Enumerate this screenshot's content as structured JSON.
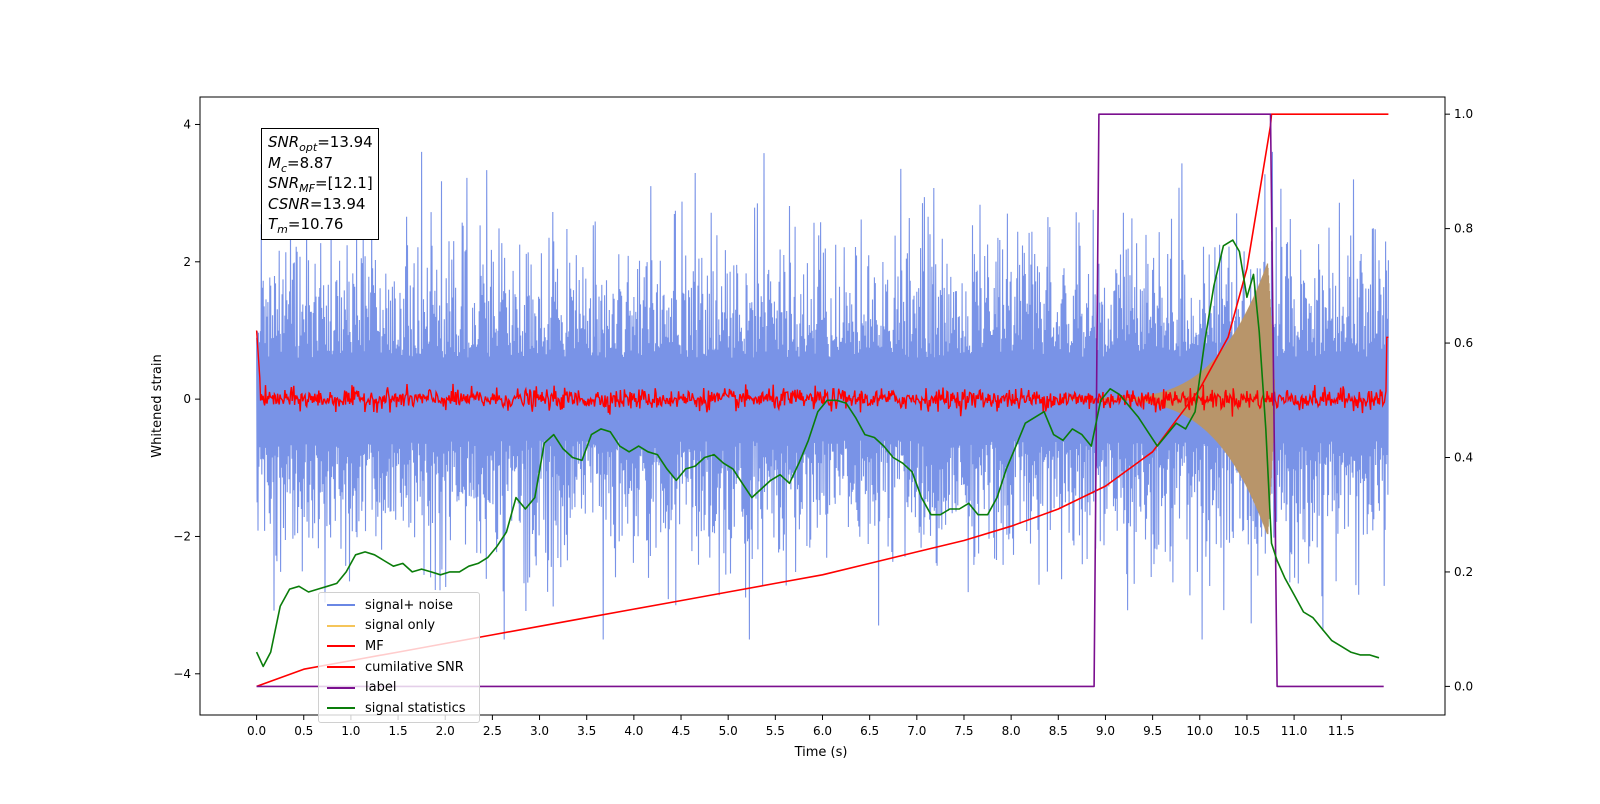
{
  "chart_data": {
    "type": "line",
    "xlabel": "Time (s)",
    "ylabel": "Whitened strain",
    "xlim": [
      -0.6,
      12.6
    ],
    "ylim": [
      -4.6,
      4.4
    ],
    "y2lim": [
      -0.05,
      1.03
    ],
    "x_ticks": [
      "0.0",
      "0.5",
      "1.0",
      "1.5",
      "2.0",
      "2.5",
      "3.0",
      "3.5",
      "4.0",
      "4.5",
      "5.0",
      "5.5",
      "6.0",
      "6.5",
      "7.0",
      "7.5",
      "8.0",
      "8.5",
      "9.0",
      "9.5",
      "10.0",
      "10.5",
      "11.0",
      "11.5"
    ],
    "y_ticks": [
      "4",
      "2",
      "0",
      "−2",
      "−4"
    ],
    "y2_ticks": [
      "1.0",
      "0.8",
      "0.6",
      "0.4",
      "0.2",
      "0.0"
    ],
    "grid": false,
    "legend_position": "lower-left",
    "series": [
      {
        "name": "signal+ noise",
        "color": "#6a87e4",
        "axis": "left",
        "kind": "noise",
        "amplitude_range": [
          -3.5,
          3.6
        ],
        "x_range": [
          0.0,
          12.0
        ]
      },
      {
        "name": "signal only",
        "color": "#f5c55a",
        "axis": "left",
        "kind": "chirp",
        "x_range": [
          8.5,
          10.8
        ],
        "peak_amplitude": 2.3
      },
      {
        "name": "MF",
        "color": "#ff0000",
        "axis": "left",
        "kind": "noise",
        "x_range": [
          0.0,
          12.0
        ],
        "amplitude": 0.15,
        "end_value": 0.9
      },
      {
        "name": "cumilative SNR",
        "color": "#ff0000",
        "axis": "right",
        "x": [
          0.0,
          0.5,
          1.0,
          1.5,
          2.0,
          2.5,
          3.0,
          3.5,
          4.0,
          4.5,
          5.0,
          5.5,
          6.0,
          6.5,
          7.0,
          7.5,
          8.0,
          8.5,
          9.0,
          9.5,
          10.0,
          10.3,
          10.5,
          10.65,
          10.75,
          10.76,
          12.0
        ],
        "y": [
          0.0,
          0.03,
          0.045,
          0.06,
          0.075,
          0.09,
          0.105,
          0.12,
          0.135,
          0.15,
          0.165,
          0.18,
          0.195,
          0.215,
          0.235,
          0.255,
          0.28,
          0.31,
          0.35,
          0.41,
          0.52,
          0.61,
          0.73,
          0.88,
          0.98,
          1.0,
          1.0
        ]
      },
      {
        "name": "label",
        "color": "#7b0f8f",
        "axis": "right",
        "x": [
          0.0,
          8.88,
          8.93,
          10.75,
          10.82,
          11.95
        ],
        "y": [
          0.0,
          0.0,
          1.0,
          1.0,
          0.0,
          0.0
        ]
      },
      {
        "name": "signal statistics",
        "color": "#0a7d0a",
        "axis": "right",
        "x": [
          0.0,
          0.07,
          0.15,
          0.25,
          0.35,
          0.45,
          0.55,
          0.65,
          0.75,
          0.85,
          0.95,
          1.05,
          1.15,
          1.25,
          1.35,
          1.45,
          1.55,
          1.65,
          1.75,
          1.85,
          1.95,
          2.05,
          2.15,
          2.25,
          2.35,
          2.45,
          2.55,
          2.65,
          2.75,
          2.85,
          2.95,
          3.05,
          3.15,
          3.25,
          3.35,
          3.45,
          3.55,
          3.65,
          3.75,
          3.85,
          3.95,
          4.05,
          4.15,
          4.25,
          4.35,
          4.45,
          4.55,
          4.65,
          4.75,
          4.85,
          4.95,
          5.05,
          5.15,
          5.25,
          5.35,
          5.45,
          5.55,
          5.65,
          5.75,
          5.85,
          5.95,
          6.05,
          6.15,
          6.25,
          6.35,
          6.45,
          6.55,
          6.65,
          6.75,
          6.85,
          6.95,
          7.05,
          7.15,
          7.25,
          7.35,
          7.45,
          7.55,
          7.65,
          7.75,
          7.85,
          7.95,
          8.05,
          8.15,
          8.25,
          8.35,
          8.45,
          8.55,
          8.65,
          8.75,
          8.85,
          8.95,
          9.05,
          9.15,
          9.25,
          9.35,
          9.45,
          9.55,
          9.65,
          9.75,
          9.85,
          9.95,
          10.05,
          10.15,
          10.25,
          10.35,
          10.42,
          10.5,
          10.57,
          10.63,
          10.7,
          10.76,
          10.82,
          10.9,
          11.0,
          11.1,
          11.2,
          11.3,
          11.4,
          11.5,
          11.6,
          11.7,
          11.8,
          11.9
        ],
        "y": [
          0.06,
          0.035,
          0.06,
          0.14,
          0.17,
          0.175,
          0.165,
          0.17,
          0.175,
          0.18,
          0.2,
          0.23,
          0.235,
          0.23,
          0.22,
          0.21,
          0.215,
          0.2,
          0.205,
          0.2,
          0.195,
          0.2,
          0.2,
          0.21,
          0.215,
          0.225,
          0.245,
          0.27,
          0.33,
          0.31,
          0.33,
          0.425,
          0.44,
          0.415,
          0.4,
          0.395,
          0.44,
          0.45,
          0.445,
          0.42,
          0.41,
          0.42,
          0.41,
          0.405,
          0.38,
          0.36,
          0.38,
          0.385,
          0.4,
          0.405,
          0.39,
          0.38,
          0.355,
          0.33,
          0.345,
          0.36,
          0.37,
          0.355,
          0.39,
          0.43,
          0.48,
          0.5,
          0.5,
          0.495,
          0.47,
          0.44,
          0.435,
          0.42,
          0.4,
          0.39,
          0.375,
          0.33,
          0.3,
          0.3,
          0.31,
          0.31,
          0.32,
          0.3,
          0.3,
          0.33,
          0.38,
          0.42,
          0.46,
          0.47,
          0.48,
          0.44,
          0.43,
          0.45,
          0.44,
          0.42,
          0.5,
          0.52,
          0.51,
          0.49,
          0.47,
          0.445,
          0.42,
          0.44,
          0.46,
          0.45,
          0.48,
          0.6,
          0.7,
          0.77,
          0.78,
          0.76,
          0.68,
          0.72,
          0.62,
          0.45,
          0.25,
          0.22,
          0.19,
          0.16,
          0.13,
          0.12,
          0.1,
          0.08,
          0.07,
          0.06,
          0.055,
          0.055,
          0.05
        ]
      }
    ]
  },
  "annotation": {
    "snr_opt_var": "SNR",
    "snr_opt_sub": "opt",
    "snr_opt_val": "=13.94",
    "mc_var": "M",
    "mc_sub": "c",
    "mc_val": "=8.87",
    "snr_mf_var": "SNR",
    "snr_mf_sub": "MF",
    "snr_mf_val": "=[12.1]",
    "csnr_var": "CSNR",
    "csnr_val": "=13.94",
    "tm_var": "T",
    "tm_sub": "m",
    "tm_val": "=10.76"
  },
  "legend": [
    {
      "label": "signal+ noise",
      "color": "#6a87e4"
    },
    {
      "label": "signal only",
      "color": "#f5c55a"
    },
    {
      "label": "MF",
      "color": "#ff0000"
    },
    {
      "label": "cumilative SNR",
      "color": "#ff0000"
    },
    {
      "label": "label",
      "color": "#7b0f8f"
    },
    {
      "label": "signal statistics",
      "color": "#0a7d0a"
    }
  ]
}
